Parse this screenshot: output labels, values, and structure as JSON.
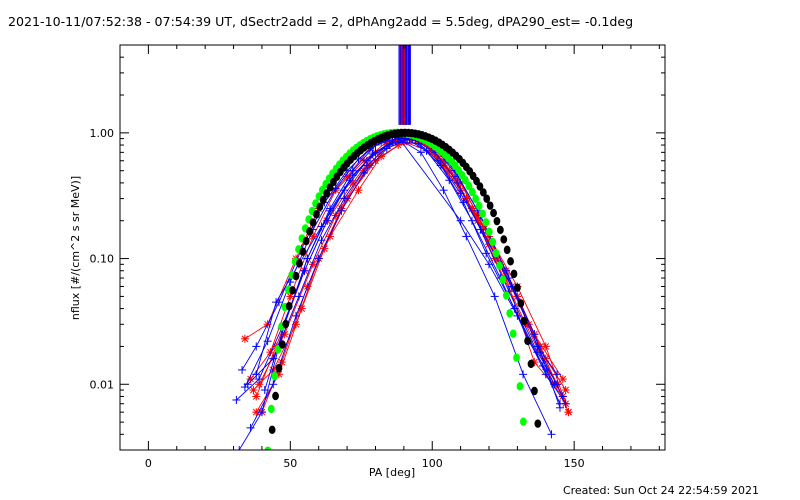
{
  "chart_data": {
    "type": "line",
    "title": "2021-10-11/07:52:38 - 07:54:39 UT, dSectr2add = 2, dPhAng2add = 5.5deg, dPA290_est= -0.1deg",
    "xlabel": "PA [deg]",
    "ylabel": "nflux [#/(cm^2 s sr MeV)]",
    "xlim": [
      -10,
      182
    ],
    "ylim": [
      0.003,
      5.0
    ],
    "yscale": "log",
    "x_ticks": [
      0,
      50,
      100,
      150
    ],
    "x_tick_labels": [
      "0",
      "50",
      "100",
      "150"
    ],
    "y_ticks": [
      0.01,
      0.1,
      1.0
    ],
    "y_tick_labels": [
      "0.01",
      "0.10",
      "1.00"
    ],
    "footer": "Created: Sun Oct 24 22:54:59 2021",
    "colors": {
      "red": "#ff0000",
      "blue": "#0000ff",
      "green": "#00ff00",
      "black": "#000000",
      "axes": "#000000"
    },
    "vertical_lines": [
      {
        "x": 88.4,
        "color": "#0000ff"
      },
      {
        "x": 88.7,
        "color": "#ff0000"
      },
      {
        "x": 89.0,
        "color": "#0000ff"
      },
      {
        "x": 89.4,
        "color": "#ff0000"
      },
      {
        "x": 89.8,
        "color": "#0000ff"
      },
      {
        "x": 90.2,
        "color": "#ff0000"
      },
      {
        "x": 90.6,
        "color": "#0000ff"
      },
      {
        "x": 91.0,
        "color": "#0000ff"
      },
      {
        "x": 91.4,
        "color": "#ff0000"
      },
      {
        "x": 91.8,
        "color": "#0000ff"
      },
      {
        "x": 92.2,
        "color": "#0000ff"
      }
    ],
    "series": [
      {
        "color": "red",
        "x": [
          38,
          45,
          55,
          63,
          72,
          80,
          88,
          96,
          104,
          112,
          122,
          133,
          143
        ],
        "y": [
          0.008,
          0.02,
          0.08,
          0.2,
          0.4,
          0.7,
          0.9,
          0.85,
          0.6,
          0.3,
          0.1,
          0.03,
          0.01
        ]
      },
      {
        "color": "red",
        "x": [
          34,
          42,
          52,
          60,
          70,
          78,
          86,
          94,
          102,
          110,
          120,
          130,
          140,
          147
        ],
        "y": [
          0.023,
          0.03,
          0.1,
          0.25,
          0.45,
          0.75,
          0.95,
          0.95,
          0.65,
          0.4,
          0.15,
          0.06,
          0.02,
          0.007
        ]
      },
      {
        "color": "red",
        "x": [
          36,
          43,
          50,
          58,
          66,
          76,
          84,
          92,
          100,
          108,
          116,
          126,
          136,
          146
        ],
        "y": [
          0.011,
          0.018,
          0.05,
          0.15,
          0.35,
          0.6,
          0.85,
          0.9,
          0.75,
          0.45,
          0.2,
          0.07,
          0.015,
          0.008
        ]
      },
      {
        "color": "red",
        "x": [
          38,
          46,
          54,
          62,
          70,
          80,
          90,
          100,
          110,
          118,
          128,
          138,
          148
        ],
        "y": [
          0.006,
          0.012,
          0.04,
          0.12,
          0.3,
          0.6,
          0.85,
          0.7,
          0.35,
          0.18,
          0.06,
          0.02,
          0.006
        ]
      },
      {
        "color": "red",
        "x": [
          40,
          47,
          56,
          64,
          74,
          82,
          90,
          98,
          106,
          114,
          124,
          134,
          144,
          148
        ],
        "y": [
          0.006,
          0.015,
          0.06,
          0.15,
          0.35,
          0.65,
          0.85,
          0.8,
          0.5,
          0.25,
          0.09,
          0.03,
          0.01,
          0.006
        ]
      },
      {
        "color": "red",
        "x": [
          37,
          44,
          52,
          60,
          68,
          78,
          88,
          96,
          104,
          112,
          120,
          130,
          140,
          147
        ],
        "y": [
          0.009,
          0.013,
          0.03,
          0.1,
          0.25,
          0.55,
          0.8,
          0.85,
          0.55,
          0.3,
          0.13,
          0.05,
          0.016,
          0.009
        ]
      },
      {
        "color": "red",
        "x": [
          39,
          48,
          58,
          66,
          76,
          84,
          92,
          100,
          108,
          116,
          126,
          136,
          146
        ],
        "y": [
          0.01,
          0.025,
          0.09,
          0.22,
          0.5,
          0.8,
          0.95,
          0.8,
          0.5,
          0.22,
          0.08,
          0.025,
          0.011
        ]
      },
      {
        "color": "blue",
        "x": [
          32,
          40,
          48,
          56,
          64,
          72,
          80,
          88,
          96,
          104,
          112,
          122,
          132,
          142
        ],
        "y": [
          0.003,
          0.006,
          0.03,
          0.1,
          0.25,
          0.5,
          0.8,
          0.9,
          0.7,
          0.35,
          0.15,
          0.05,
          0.012,
          0.004
        ]
      },
      {
        "color": "blue",
        "x": [
          33,
          38,
          46,
          54,
          62,
          70,
          78,
          86,
          94,
          102,
          110,
          118,
          128,
          138,
          146
        ],
        "y": [
          0.013,
          0.02,
          0.045,
          0.12,
          0.28,
          0.5,
          0.75,
          0.92,
          0.88,
          0.6,
          0.33,
          0.16,
          0.06,
          0.018,
          0.008
        ]
      },
      {
        "color": "blue",
        "x": [
          35,
          44,
          53,
          61,
          69,
          77,
          85,
          93,
          101,
          109,
          117,
          127,
          137,
          144
        ],
        "y": [
          0.01,
          0.016,
          0.05,
          0.14,
          0.3,
          0.55,
          0.8,
          0.9,
          0.7,
          0.4,
          0.17,
          0.055,
          0.018,
          0.01
        ]
      },
      {
        "color": "blue",
        "x": [
          31,
          39,
          47,
          55,
          63,
          71,
          79,
          87,
          95,
          103,
          111,
          119,
          129,
          139,
          145
        ],
        "y": [
          0.0075,
          0.011,
          0.028,
          0.08,
          0.2,
          0.42,
          0.68,
          0.85,
          0.82,
          0.55,
          0.28,
          0.11,
          0.04,
          0.014,
          0.007
        ]
      },
      {
        "color": "blue",
        "x": [
          34,
          42,
          50,
          58,
          66,
          74,
          82,
          90,
          98,
          106,
          114,
          124,
          134,
          143
        ],
        "y": [
          0.0095,
          0.022,
          0.065,
          0.17,
          0.36,
          0.62,
          0.85,
          0.92,
          0.72,
          0.42,
          0.2,
          0.07,
          0.022,
          0.01
        ]
      },
      {
        "color": "blue",
        "x": [
          36,
          44,
          52,
          60,
          68,
          76,
          84,
          92,
          100,
          108,
          116,
          126,
          136,
          145
        ],
        "y": [
          0.0045,
          0.01,
          0.035,
          0.1,
          0.24,
          0.48,
          0.75,
          0.9,
          0.82,
          0.5,
          0.24,
          0.08,
          0.025,
          0.0065
        ]
      },
      {
        "color": "blue",
        "x": [
          38,
          45,
          53,
          61,
          69,
          77,
          85,
          93,
          101,
          109,
          117,
          127,
          137,
          144
        ],
        "y": [
          0.012,
          0.045,
          0.09,
          0.18,
          0.35,
          0.6,
          0.82,
          0.92,
          0.75,
          0.45,
          0.22,
          0.07,
          0.02,
          0.012
        ]
      },
      {
        "color": "blue",
        "x": [
          41,
          48,
          56,
          64,
          72,
          80,
          88,
          110,
          120,
          130,
          140,
          147
        ],
        "y": [
          0.009,
          0.03,
          0.1,
          0.24,
          0.46,
          0.7,
          0.92,
          0.2,
          0.09,
          0.035,
          0.012,
          0.007
        ]
      }
    ],
    "fits": [
      {
        "color": "green",
        "amplitude": 1.0,
        "center": 87.5,
        "halfwidth": 49.6,
        "power": 3.2,
        "x_start": 38.5,
        "x_end": 134.5,
        "step": 1.2
      },
      {
        "color": "black",
        "amplitude": 1.0,
        "center": 90.5,
        "halfwidth": 52.5,
        "power": 3.4,
        "x_start": 40.0,
        "x_end": 142.0,
        "step": 1.2
      }
    ]
  }
}
